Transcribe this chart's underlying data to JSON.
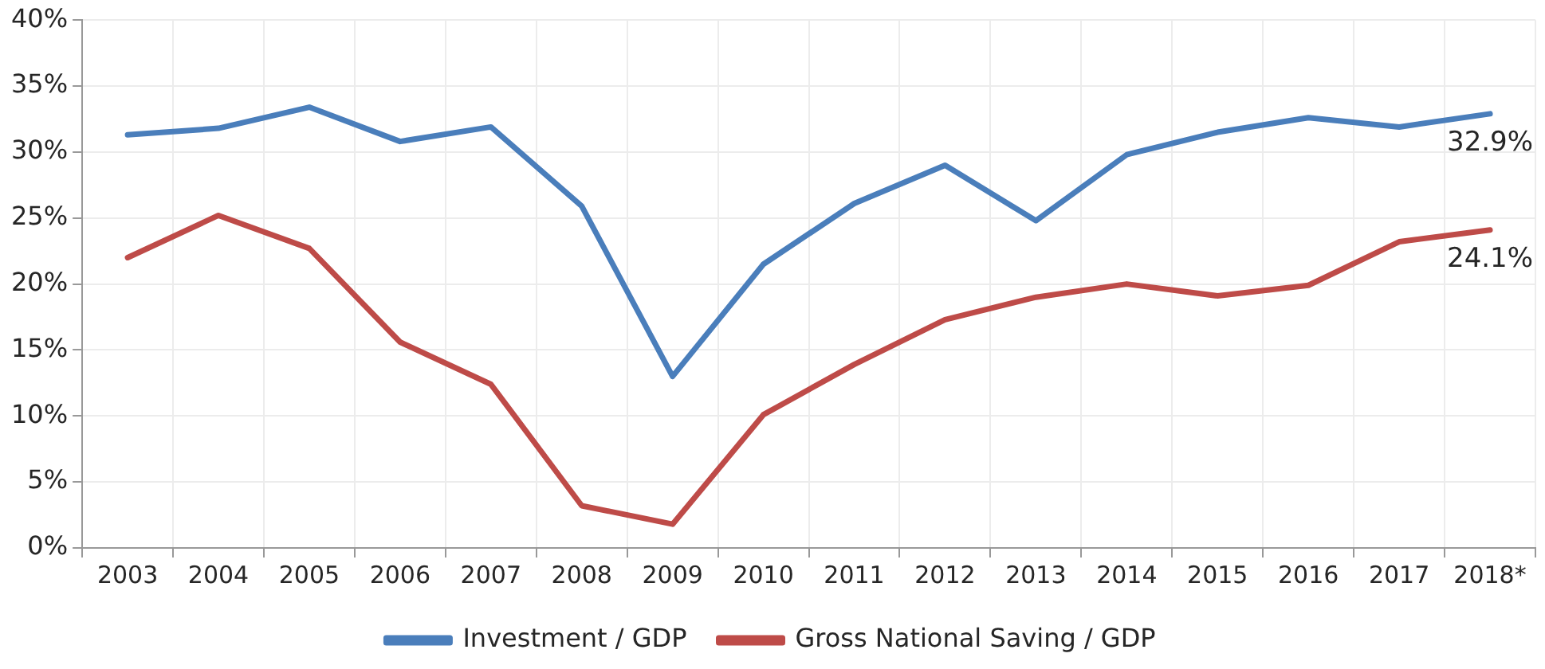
{
  "chart_data": {
    "type": "line",
    "categories": [
      "2003",
      "2004",
      "2005",
      "2006",
      "2007",
      "2008",
      "2009",
      "2010",
      "2011",
      "2012",
      "2013",
      "2014",
      "2015",
      "2016",
      "2017",
      "2018*"
    ],
    "series": [
      {
        "name": "Investment / GDP",
        "color": "#4a7ebb",
        "values": [
          31.3,
          31.8,
          33.4,
          30.8,
          31.9,
          25.9,
          13.0,
          21.5,
          26.1,
          29.0,
          24.8,
          29.8,
          31.5,
          32.6,
          31.9,
          32.9
        ],
        "value_labels": [
          null,
          null,
          null,
          null,
          null,
          null,
          null,
          null,
          null,
          null,
          null,
          null,
          null,
          null,
          null,
          "32.9%"
        ]
      },
      {
        "name": "Gross National Saving / GDP",
        "color": "#be4b48",
        "values": [
          22.0,
          25.2,
          22.7,
          15.6,
          12.4,
          3.2,
          1.8,
          10.1,
          13.9,
          17.3,
          19.0,
          20.0,
          19.1,
          19.9,
          23.2,
          24.1
        ],
        "value_labels": [
          null,
          null,
          null,
          null,
          null,
          null,
          null,
          null,
          null,
          null,
          null,
          null,
          null,
          null,
          null,
          "24.1%"
        ]
      }
    ],
    "ylim": [
      0,
      40
    ],
    "yticks": [
      {
        "value": 0,
        "label": "0%"
      },
      {
        "value": 5,
        "label": "5%"
      },
      {
        "value": 10,
        "label": "10%"
      },
      {
        "value": 15,
        "label": "15%"
      },
      {
        "value": 20,
        "label": "20%"
      },
      {
        "value": 25,
        "label": "25%"
      },
      {
        "value": 30,
        "label": "30%"
      },
      {
        "value": 35,
        "label": "35%"
      },
      {
        "value": 40,
        "label": "40%"
      }
    ],
    "grid": true,
    "legend": "bottom",
    "marker": "none",
    "line_style": "solid"
  }
}
